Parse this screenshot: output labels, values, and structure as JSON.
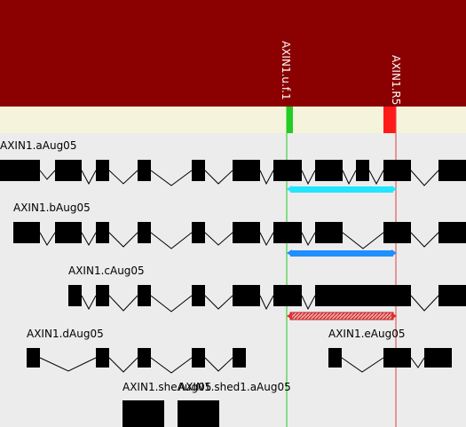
{
  "colors": {
    "header": "#8b0000",
    "marker_band": "#f5f3dc",
    "lane_bg": "#ececec",
    "exon": "#000000",
    "primer_fwd": "#22cc22",
    "primer_rev": "#ff1a1a",
    "amplicon_a": "#22e5ff",
    "amplicon_b": "#1e90ff",
    "amplicon_c": "#e03030"
  },
  "markers": [
    {
      "name": "AXIN1.u.f.1",
      "type": "forward",
      "color": "#22cc22"
    },
    {
      "name": "AXIN1.R5",
      "type": "reverse",
      "color": "#ff1a1a"
    }
  ],
  "transcripts": [
    {
      "name": "AXIN1.aAug05"
    },
    {
      "name": "AXIN1.bAug05"
    },
    {
      "name": "AXIN1.cAug05"
    },
    {
      "name": "AXIN1.dAug05"
    },
    {
      "name": "AXIN1.eAug05"
    },
    {
      "name": "AXIN1.sheAug05"
    },
    {
      "name": "AXIN1.shed1.aAug05"
    }
  ],
  "amplicons": [
    {
      "transcript": "AXIN1.aAug05",
      "style": "solid",
      "color": "#22e5ff"
    },
    {
      "transcript": "AXIN1.bAug05",
      "style": "solid",
      "color": "#1e90ff"
    },
    {
      "transcript": "AXIN1.cAug05",
      "style": "hatched",
      "color": "#e03030"
    }
  ]
}
